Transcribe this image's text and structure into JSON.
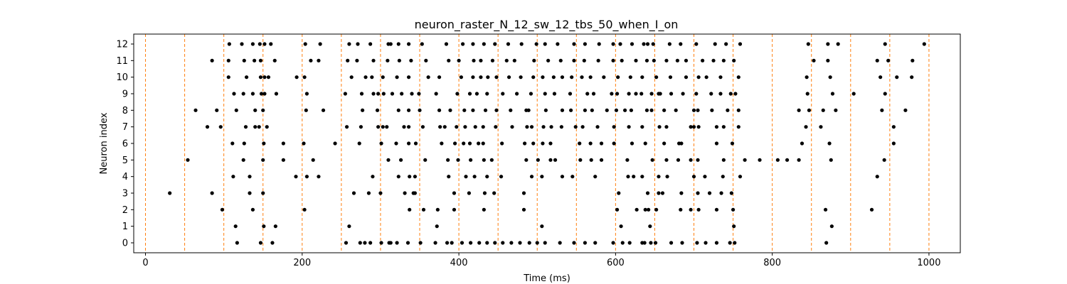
{
  "chart_data": {
    "type": "scatter",
    "title": "neuron_raster_N_12_sw_12_tbs_50_when_I_on",
    "xlabel": "Time (ms)",
    "ylabel": "Neuron index",
    "xlim": [
      -15,
      1040
    ],
    "ylim": [
      -0.6,
      12.6
    ],
    "xticks": [
      0,
      200,
      400,
      600,
      800,
      1000
    ],
    "yticks": [
      0,
      1,
      2,
      3,
      4,
      5,
      6,
      7,
      8,
      9,
      10,
      11,
      12
    ],
    "grid": false,
    "marker_color": "#000000",
    "vline_color": "#ff7f0e",
    "vlines": [
      0,
      50,
      100,
      150,
      200,
      250,
      300,
      350,
      400,
      450,
      500,
      550,
      600,
      650,
      700,
      750,
      800,
      850,
      900,
      950,
      1000
    ],
    "spikes": [
      {
        "neuron": 0,
        "times": [
          117,
          147,
          162,
          256,
          274,
          280,
          287,
          301,
          311,
          313,
          321,
          335,
          351,
          370,
          385,
          391,
          404,
          415,
          426,
          436,
          446,
          456,
          467,
          478,
          490,
          500,
          510,
          529,
          547,
          561,
          574,
          597,
          609,
          618,
          634,
          637,
          645,
          651,
          671,
          685,
          704,
          715,
          729,
          746,
          752,
          869
        ]
      },
      {
        "neuron": 1,
        "times": [
          115,
          151,
          166,
          260,
          372,
          506,
          607,
          644,
          751,
          876
        ]
      },
      {
        "neuron": 2,
        "times": [
          98,
          137,
          203,
          337,
          355,
          373,
          394,
          432,
          483,
          602,
          627,
          638,
          642,
          652,
          683,
          696,
          706,
          729,
          750,
          868,
          927
        ]
      },
      {
        "neuron": 3,
        "times": [
          31,
          85,
          133,
          150,
          266,
          285,
          300,
          331,
          342,
          344,
          394,
          413,
          433,
          445,
          483,
          604,
          641,
          655,
          660,
          684,
          705,
          720,
          735,
          748
        ]
      },
      {
        "neuron": 4,
        "times": [
          112,
          133,
          192,
          206,
          221,
          290,
          323,
          337,
          344,
          387,
          409,
          420,
          436,
          454,
          493,
          506,
          532,
          545,
          574,
          616,
          623,
          634,
          655,
          666,
          700,
          714,
          737,
          759,
          934
        ]
      },
      {
        "neuron": 5,
        "times": [
          54,
          125,
          150,
          176,
          214,
          310,
          326,
          357,
          386,
          399,
          415,
          432,
          442,
          486,
          501,
          517,
          523,
          555,
          569,
          582,
          615,
          647,
          665,
          680,
          696,
          705,
          738,
          765,
          784,
          807,
          819,
          834,
          875,
          943
        ]
      },
      {
        "neuron": 6,
        "times": [
          111,
          126,
          151,
          176,
          202,
          242,
          273,
          301,
          320,
          336,
          345,
          378,
          395,
          406,
          414,
          425,
          431,
          455,
          484,
          495,
          507,
          517,
          554,
          568,
          582,
          598,
          621,
          638,
          662,
          681,
          684,
          729,
          749,
          838,
          873,
          955
        ]
      },
      {
        "neuron": 7,
        "times": [
          79,
          96,
          128,
          140,
          145,
          155,
          257,
          275,
          297,
          303,
          308,
          330,
          336,
          354,
          376,
          382,
          397,
          408,
          421,
          431,
          447,
          468,
          487,
          493,
          508,
          518,
          531,
          549,
          558,
          577,
          598,
          617,
          634,
          656,
          665,
          696,
          700,
          706,
          729,
          738,
          757,
          843,
          862,
          955
        ]
      },
      {
        "neuron": 8,
        "times": [
          64,
          91,
          116,
          140,
          150,
          205,
          227,
          277,
          296,
          323,
          336,
          350,
          375,
          389,
          407,
          418,
          434,
          448,
          466,
          486,
          489,
          511,
          532,
          543,
          561,
          570,
          589,
          601,
          612,
          620,
          640,
          646,
          662,
          677,
          700,
          705,
          723,
          743,
          757,
          834,
          847,
          865,
          881,
          940,
          970
        ]
      },
      {
        "neuron": 9,
        "times": [
          113,
          125,
          137,
          148,
          152,
          167,
          206,
          255,
          276,
          291,
          297,
          304,
          315,
          327,
          340,
          349,
          371,
          398,
          414,
          423,
          436,
          456,
          474,
          492,
          510,
          522,
          542,
          564,
          572,
          595,
          602,
          617,
          626,
          633,
          646,
          655,
          657,
          671,
          686,
          703,
          722,
          734,
          747,
          753,
          845,
          877,
          904,
          944
        ]
      },
      {
        "neuron": 10,
        "times": [
          106,
          129,
          147,
          152,
          157,
          193,
          203,
          263,
          281,
          289,
          303,
          321,
          336,
          361,
          375,
          403,
          418,
          428,
          437,
          448,
          464,
          479,
          495,
          507,
          521,
          532,
          544,
          557,
          568,
          585,
          603,
          619,
          634,
          652,
          670,
          690,
          706,
          716,
          734,
          757,
          844,
          874,
          938,
          959,
          978
        ]
      },
      {
        "neuron": 11,
        "times": [
          85,
          106,
          126,
          139,
          147,
          165,
          211,
          221,
          258,
          270,
          291,
          309,
          324,
          339,
          358,
          387,
          400,
          419,
          428,
          443,
          461,
          471,
          496,
          514,
          530,
          547,
          560,
          578,
          597,
          608,
          626,
          640,
          649,
          665,
          679,
          690,
          711,
          725,
          738,
          751,
          853,
          871,
          934,
          948,
          979
        ]
      },
      {
        "neuron": 12,
        "times": [
          107,
          123,
          137,
          146,
          152,
          160,
          204,
          223,
          260,
          271,
          287,
          310,
          313,
          323,
          336,
          353,
          384,
          405,
          418,
          432,
          446,
          463,
          480,
          499,
          510,
          526,
          547,
          561,
          579,
          597,
          606,
          621,
          636,
          641,
          648,
          669,
          683,
          703,
          727,
          741,
          759,
          846,
          871,
          884,
          944,
          994
        ]
      }
    ]
  }
}
